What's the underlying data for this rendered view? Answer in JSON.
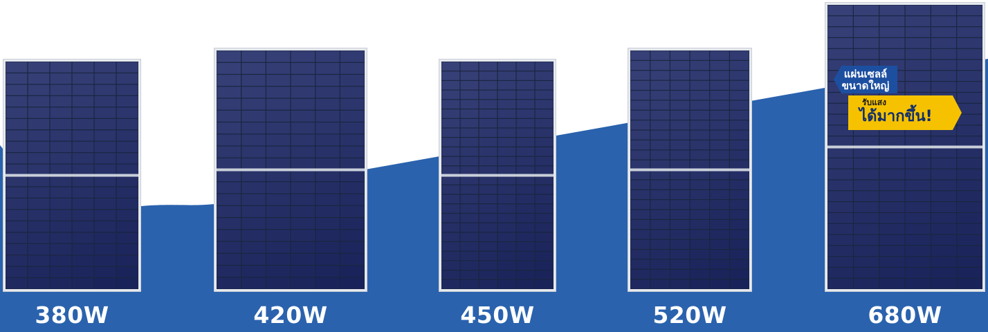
{
  "colors": {
    "wave": "#2a62ad",
    "cell": "#1b2540",
    "busbar": "#c9cfd9",
    "frame": "#e6e9ee",
    "badge_blue": "#1d4fa0",
    "badge_yellow": "#f6c200"
  },
  "panels": [
    {
      "label": "380W"
    },
    {
      "label": "420W"
    },
    {
      "label": "450W"
    },
    {
      "label": "520W"
    },
    {
      "label": "680W"
    }
  ],
  "badge": {
    "top_line1": "แผ่นเซลล์",
    "top_line2": "ขนาดใหญ่",
    "bottom_line1": "รับแสง",
    "bottom_line2": "ได้มากขึ้น!"
  }
}
